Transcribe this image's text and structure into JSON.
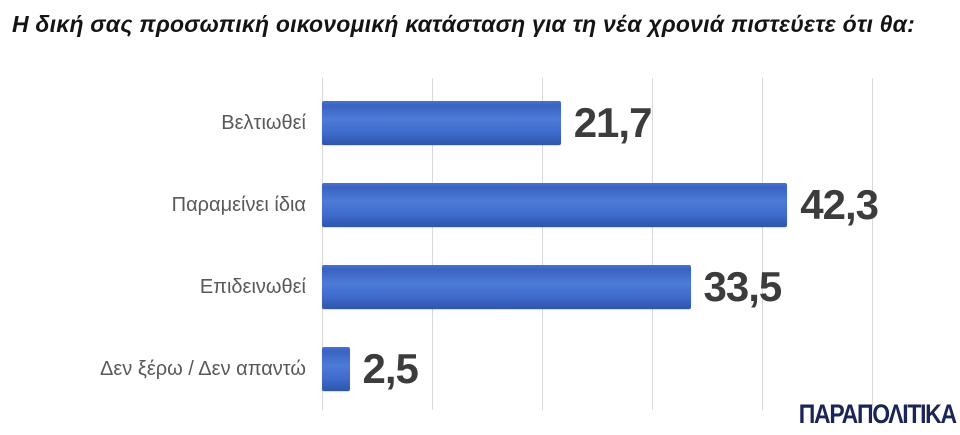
{
  "title": "Η δική σας προσωπική οικονομική κατάσταση για τη νέα χρονιά πιστεύετε ότι θα:",
  "brand": {
    "logo_text": "ΠΑΡΑΠΟΛΙΤΙΚΑ",
    "logo_color": "#1a2456"
  },
  "chart_data": {
    "type": "bar",
    "orientation": "horizontal",
    "title": "Η δική σας προσωπική οικονομική κατάσταση για τη νέα χρονιά πιστεύετε ότι θα:",
    "categories": [
      "Βελτιωθεί",
      "Παραμείνει ίδια",
      "Επιδεινωθεί",
      "Δεν ξέρω / Δεν απαντώ"
    ],
    "values": [
      21.7,
      42.3,
      33.5,
      2.5
    ],
    "value_labels": [
      "21,7",
      "42,3",
      "33,5",
      "2,5"
    ],
    "xlim": [
      0,
      50
    ],
    "gridline_interval": 10,
    "grid": true,
    "legend": "none",
    "xlabel": "",
    "ylabel": "",
    "bar_color": "#3f6bcd",
    "gridline_color": "#d9d9d9",
    "value_label_color": "#3c3c3c",
    "category_label_color": "#595959"
  }
}
